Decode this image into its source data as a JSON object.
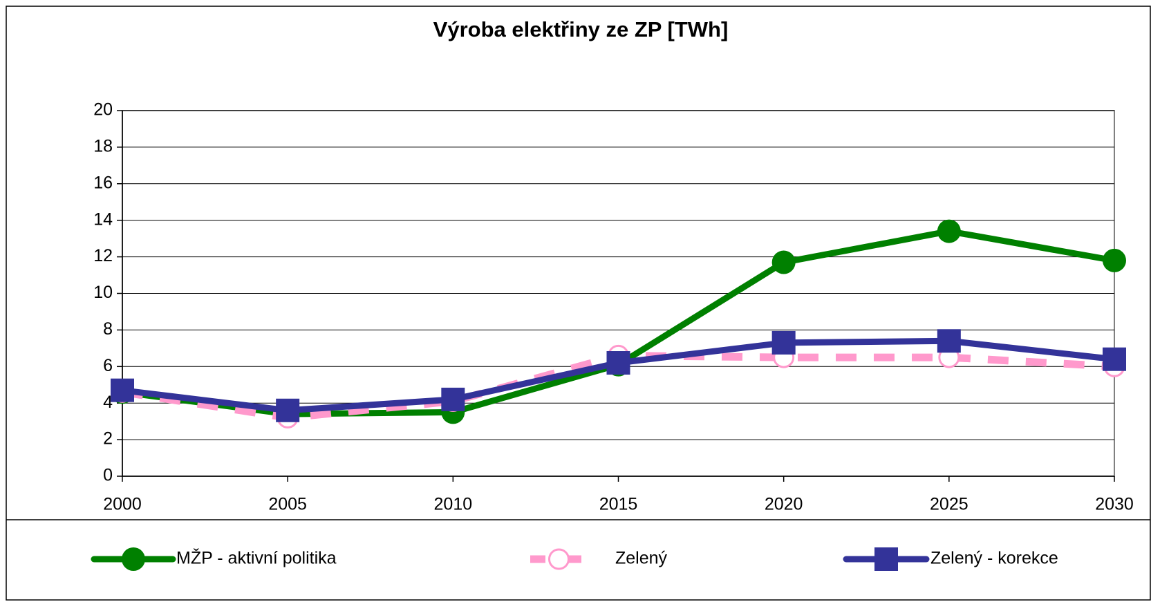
{
  "chart_data": {
    "type": "line",
    "title": "Výroba elektřiny ze ZP [TWh]",
    "x": [
      2000,
      2005,
      2010,
      2015,
      2020,
      2025,
      2030
    ],
    "xlim": [
      2000,
      2030
    ],
    "xticks": [
      2000,
      2005,
      2010,
      2015,
      2020,
      2025,
      2030
    ],
    "ylim": [
      0,
      20
    ],
    "yticks": [
      0,
      2,
      4,
      6,
      8,
      10,
      12,
      14,
      16,
      18,
      20
    ],
    "grid": true,
    "legend": "bottom",
    "series": [
      {
        "name": "MŽP - aktivní politika",
        "color": "#008000",
        "marker": "circle",
        "dash": false,
        "values": [
          4.6,
          3.4,
          3.5,
          6.1,
          11.7,
          13.4,
          11.8
        ]
      },
      {
        "name": "Zelený",
        "color": "#ff99cc",
        "marker": "circle",
        "dash": true,
        "values": [
          4.6,
          3.2,
          4.1,
          6.6,
          6.5,
          6.5,
          6.0
        ]
      },
      {
        "name": "Zelený - korekce",
        "color": "#333399",
        "marker": "square",
        "dash": false,
        "values": [
          4.7,
          3.6,
          4.2,
          6.2,
          7.3,
          7.4,
          6.4
        ]
      }
    ]
  }
}
